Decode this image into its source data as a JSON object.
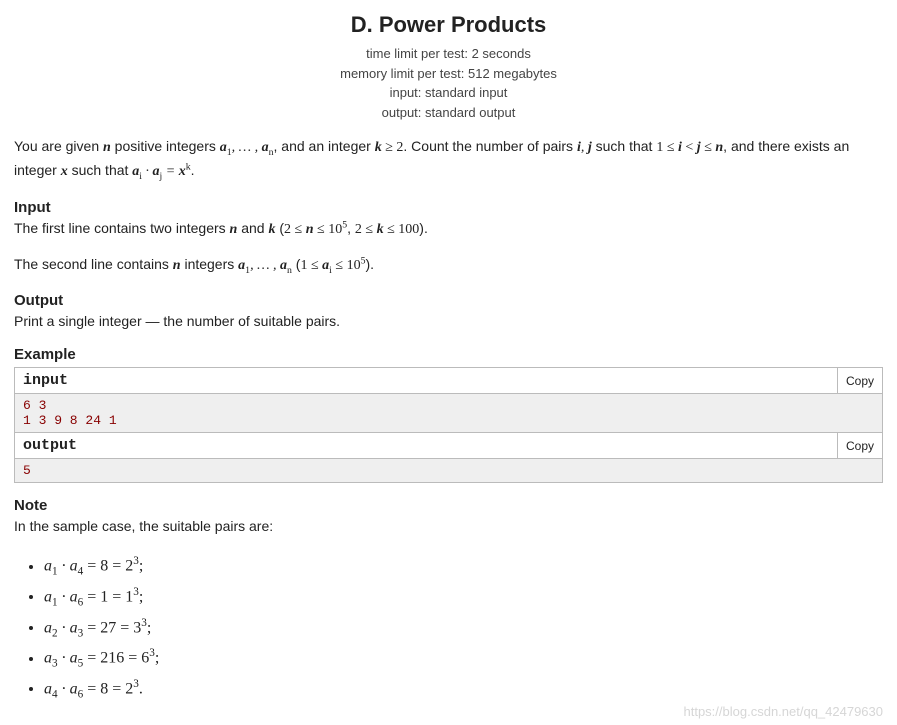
{
  "title": "D. Power Products",
  "meta": {
    "time_limit": "time limit per test: 2 seconds",
    "memory_limit": "memory limit per test: 512 megabytes",
    "input": "input: standard input",
    "output": "output: standard output"
  },
  "statement": {
    "n": "n",
    "k": "k",
    "k_lower": "2",
    "pair_cond": "1 ≤ i < j ≤ n",
    "prod_eq": "aᵢ · aⱼ = xᵏ"
  },
  "input_section": {
    "heading": "Input",
    "n_range": "2 ≤ n ≤ 10⁵",
    "k_range": "2 ≤ k ≤ 100",
    "ai_range": "1 ≤ aᵢ ≤ 10⁵"
  },
  "output_section": {
    "heading": "Output",
    "text": "Print a single integer — the number of suitable pairs."
  },
  "example": {
    "heading": "Example",
    "input_label": "input",
    "output_label": "output",
    "copy_label": "Copy",
    "input_data": "6 3\n1 3 9 8 24 1",
    "output_data": "5"
  },
  "note": {
    "heading": "Note",
    "intro": "In the sample case, the suitable pairs are:",
    "items": [
      {
        "lhs_i": "1",
        "lhs_j": "4",
        "prod": "8",
        "base": "2",
        "exp": "3"
      },
      {
        "lhs_i": "1",
        "lhs_j": "6",
        "prod": "1",
        "base": "1",
        "exp": "3"
      },
      {
        "lhs_i": "2",
        "lhs_j": "3",
        "prod": "27",
        "base": "3",
        "exp": "3"
      },
      {
        "lhs_i": "3",
        "lhs_j": "5",
        "prod": "216",
        "base": "6",
        "exp": "3"
      },
      {
        "lhs_i": "4",
        "lhs_j": "6",
        "prod": "8",
        "base": "2",
        "exp": "3"
      }
    ]
  },
  "watermark": "https://blog.csdn.net/qq_42479630"
}
